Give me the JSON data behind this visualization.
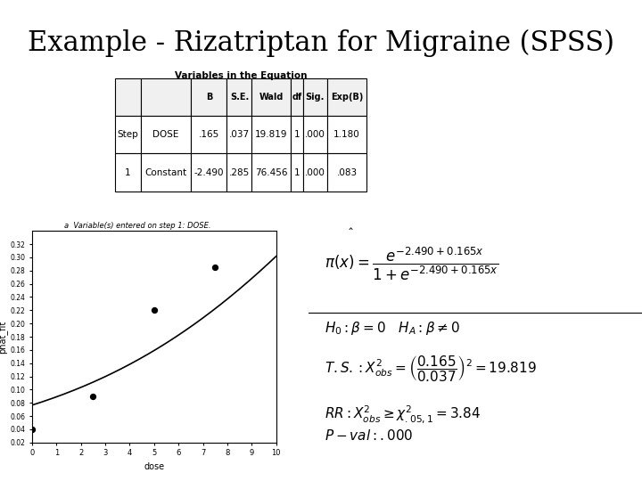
{
  "title": "Example - Rizatriptan for Migraine (SPSS)",
  "title_fontsize": 22,
  "background_color": "#ffffff",
  "table_title": "Variables in the Equation",
  "table_headers": [
    "",
    "",
    "B",
    "S.E.",
    "Wald",
    "df",
    "Sig.",
    "Exp(B)"
  ],
  "table_row1": [
    "Step 1",
    "DOSE",
    ".165",
    ".037",
    "19.819",
    "1",
    ".000",
    "1.180"
  ],
  "table_row2": [
    "",
    "Constant",
    "-2.490",
    ".285",
    "76.456",
    "1",
    ".000",
    ".083"
  ],
  "table_footnote": "Variable(s) entered on step 1: DOSE.",
  "plot_xlabel": "dose",
  "plot_ylabel": "phat_fit",
  "plot_xlim": [
    0,
    10
  ],
  "plot_ylim": [
    0.02,
    0.34
  ],
  "plot_yticks": [
    0.02,
    0.04,
    0.06,
    0.08,
    0.1,
    0.12,
    0.14,
    0.16,
    0.18,
    0.2,
    0.22,
    0.24,
    0.26,
    0.28,
    0.3,
    0.32
  ],
  "scatter_x": [
    0,
    2.5,
    5,
    7.5
  ],
  "scatter_y": [
    0.04,
    0.09,
    0.22,
    0.285
  ],
  "intercept": -2.49,
  "slope": 0.165,
  "formula_line1": "$\\hat{}$",
  "eq_text1": "$\\pi(x) = \\dfrac{e^{-2.490+0.165x}}{1+e^{-2.490+0.165x}}$",
  "eq_text2": "$H_0: \\beta = 0 \\quad H_A: \\beta \\neq 0$",
  "eq_text3": "$T.S.: X^2_{obs} = \\left(\\dfrac{0.165}{0.037}\\right)^2 = 19.819$",
  "eq_text4": "$RR: X^2_{obs} \\geq \\chi^2_{.05,1} = 3.84$",
  "eq_text5": "$P-val: .000$"
}
